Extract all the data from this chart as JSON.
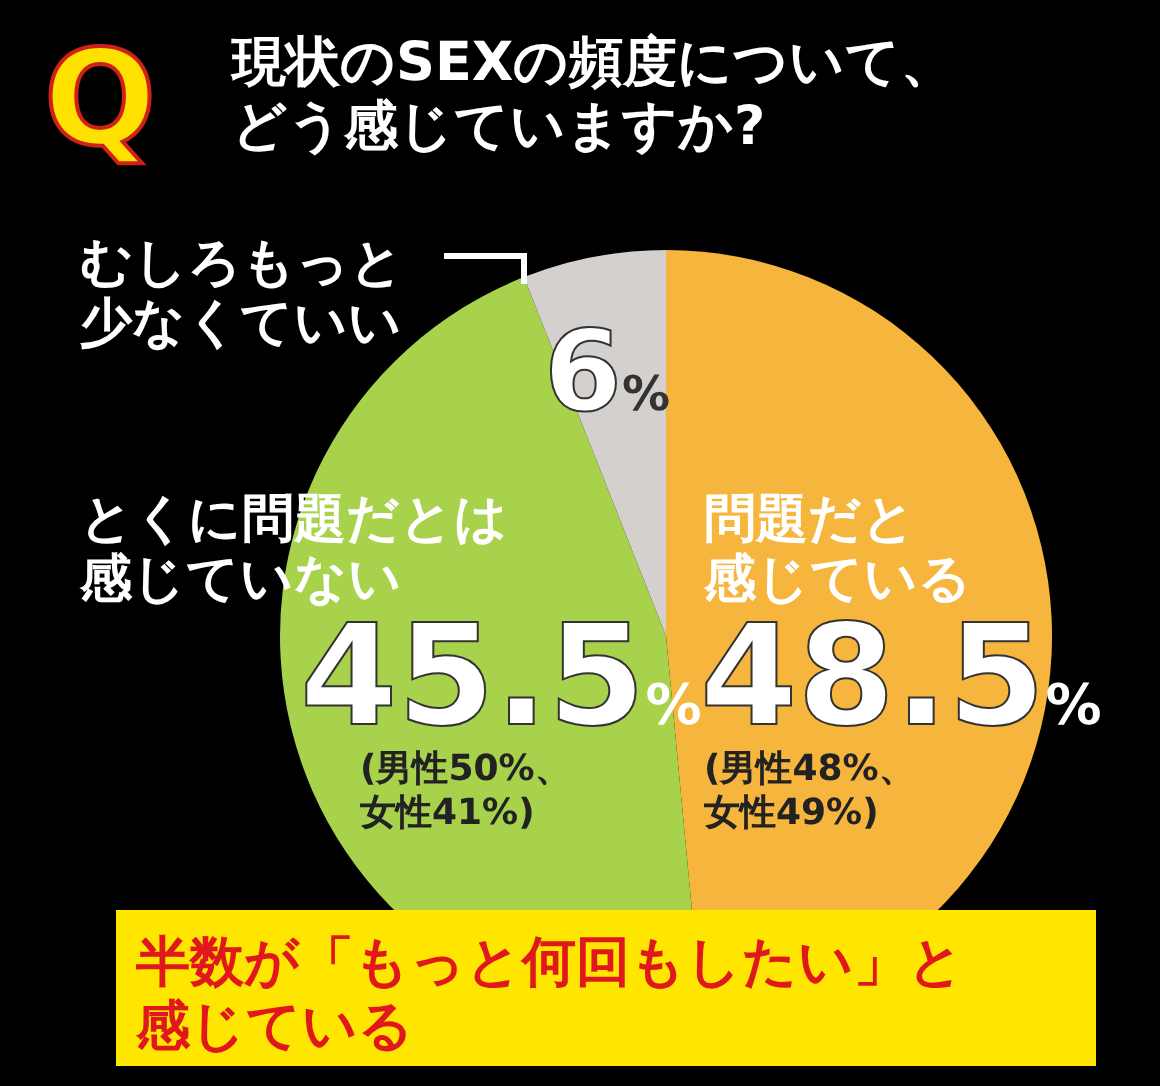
{
  "chart_data": {
    "type": "pie",
    "title": "現状のSEXの頻度について、どう感じていますか?",
    "categories": [
      "問題だと感じている",
      "とくに問題だとは感じていない",
      "むしろもっと少なくていい"
    ],
    "values": [
      48.5,
      45.5,
      6
    ],
    "colors": [
      "#f6b53c",
      "#a9d24c",
      "#d4d0cd"
    ],
    "value_labels": [
      "48.5%",
      "45.5%",
      "6%"
    ],
    "annotations": [
      "Q",
      "(男性48%、女性49%)",
      "(男性50%、女性41%)",
      "半数が「もっと何回もしたい」と感じている"
    ]
  }
}
